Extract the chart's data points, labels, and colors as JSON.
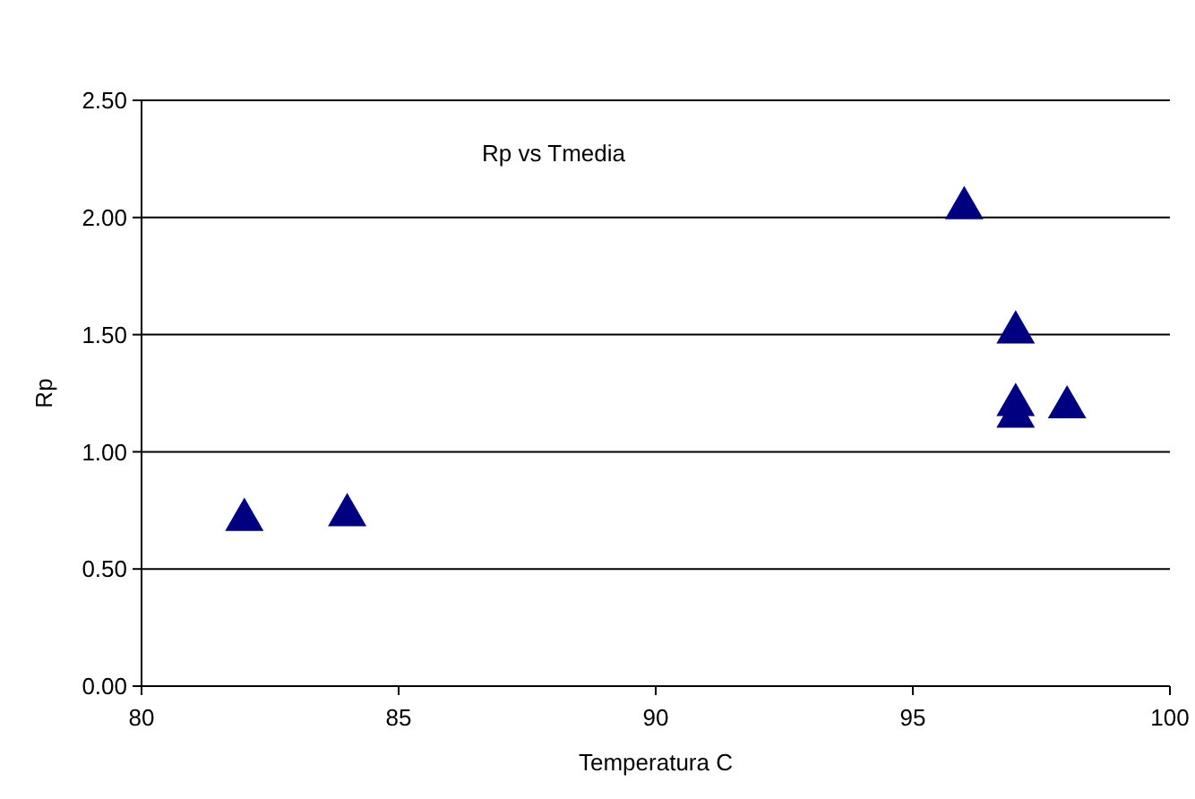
{
  "chart_data": {
    "type": "scatter",
    "title": "Rp vs Tmedia",
    "xlabel": "Temperatura C",
    "ylabel": "Rp",
    "x": [
      82,
      84,
      96,
      97,
      97,
      97,
      98
    ],
    "values": [
      0.71,
      0.73,
      2.04,
      1.51,
      1.2,
      1.15,
      1.19
    ],
    "color": "#000080",
    "marker": "triangle",
    "xlim": [
      80,
      100
    ],
    "xticks": [
      80,
      85,
      90,
      95,
      100
    ],
    "ylim": [
      0,
      2.5
    ],
    "yticks": [
      {
        "value": 0,
        "label": "0.00"
      },
      {
        "value": 0.5,
        "label": "0.50"
      },
      {
        "value": 1,
        "label": "1.00"
      },
      {
        "value": 1.5,
        "label": "1.50"
      },
      {
        "value": 2,
        "label": "2.00"
      },
      {
        "value": 2.5,
        "label": "2.50"
      }
    ],
    "grid": "y"
  }
}
